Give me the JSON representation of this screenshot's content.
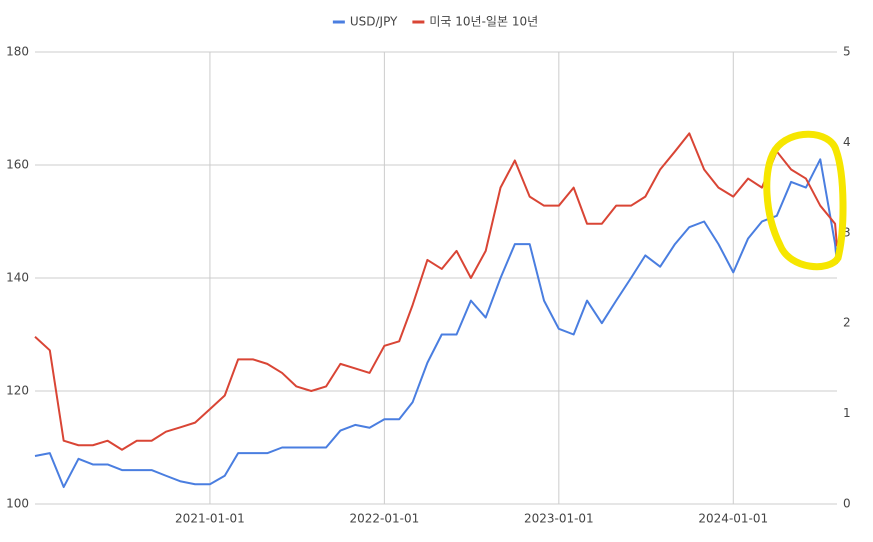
{
  "chart_data": {
    "type": "line",
    "x": [
      "2020-01-01",
      "2020-02-01",
      "2020-03-01",
      "2020-04-01",
      "2020-05-01",
      "2020-06-01",
      "2020-07-01",
      "2020-08-01",
      "2020-09-01",
      "2020-10-01",
      "2020-11-01",
      "2020-12-01",
      "2021-01-01",
      "2021-02-01",
      "2021-03-01",
      "2021-04-01",
      "2021-05-01",
      "2021-06-01",
      "2021-07-01",
      "2021-08-01",
      "2021-09-01",
      "2021-10-01",
      "2021-11-01",
      "2021-12-01",
      "2022-01-01",
      "2022-02-01",
      "2022-03-01",
      "2022-04-01",
      "2022-05-01",
      "2022-06-01",
      "2022-07-01",
      "2022-08-01",
      "2022-09-01",
      "2022-10-01",
      "2022-11-01",
      "2022-12-01",
      "2023-01-01",
      "2023-02-01",
      "2023-03-01",
      "2023-04-01",
      "2023-05-01",
      "2023-06-01",
      "2023-07-01",
      "2023-08-01",
      "2023-09-01",
      "2023-10-01",
      "2023-11-01",
      "2023-12-01",
      "2024-01-01",
      "2024-02-01",
      "2024-03-01",
      "2024-04-01",
      "2024-05-01",
      "2024-06-01",
      "2024-07-01",
      "2024-08-01",
      "2024-08-05"
    ],
    "series": [
      {
        "name": "USD/JPY",
        "color": "#4a7ee0",
        "axis": "y",
        "values": [
          108.5,
          109,
          103,
          108,
          107,
          107,
          106,
          106,
          106,
          105,
          104,
          103.5,
          103.5,
          105,
          109,
          109,
          109,
          110,
          110,
          110,
          110,
          113,
          114,
          113.5,
          115,
          115,
          118,
          125,
          130,
          130,
          136,
          133,
          140,
          146,
          146,
          136,
          131,
          130,
          136,
          132,
          136,
          140,
          144,
          142,
          146,
          149,
          150,
          146,
          141,
          147,
          150,
          151,
          157,
          156,
          161,
          146,
          142.5
        ]
      },
      {
        "name": "미국 10년-일본 10년",
        "color": "#d94535",
        "axis": "y2",
        "values": [
          1.85,
          1.7,
          0.7,
          0.65,
          0.65,
          0.7,
          0.6,
          0.7,
          0.7,
          0.8,
          0.85,
          0.9,
          1.05,
          1.2,
          1.6,
          1.6,
          1.55,
          1.45,
          1.3,
          1.25,
          1.3,
          1.55,
          1.5,
          1.45,
          1.75,
          1.8,
          2.2,
          2.7,
          2.6,
          2.8,
          2.5,
          2.8,
          3.5,
          3.8,
          3.4,
          3.3,
          3.3,
          3.5,
          3.1,
          3.1,
          3.3,
          3.3,
          3.4,
          3.7,
          3.9,
          4.1,
          3.7,
          3.5,
          3.4,
          3.6,
          3.5,
          3.9,
          3.7,
          3.6,
          3.3,
          3.1,
          2.85
        ]
      }
    ],
    "xlim": [
      "2020-01-01",
      "2024-08-05"
    ],
    "xticks": [
      "2021-01-01",
      "2022-01-01",
      "2023-01-01",
      "2024-01-01"
    ],
    "ylim": [
      100,
      180
    ],
    "yticks": [
      100,
      120,
      140,
      160,
      180
    ],
    "y2lim": [
      0,
      5
    ],
    "y2ticks": [
      0,
      1,
      2,
      3,
      4,
      5
    ],
    "grid": true,
    "legend": "top"
  }
}
